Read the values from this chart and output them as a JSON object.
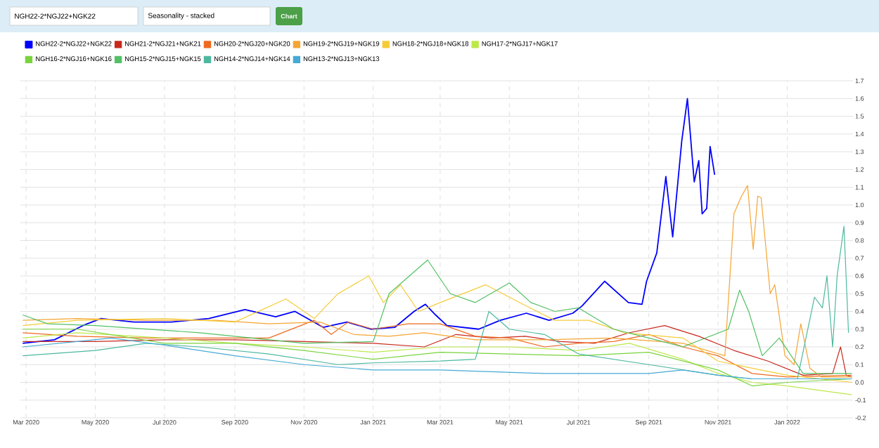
{
  "chart_data": {
    "type": "line",
    "title": "NGH22-2*NGJ22+NGK22",
    "subtitle": "Seasonality - stacked",
    "annotations": [
      "Chart"
    ],
    "xlim": [
      "2020-02-25",
      "2022-02-28"
    ],
    "xticks": [
      {
        "value": "2020-03-01",
        "label": "Mar 2020"
      },
      {
        "value": "2020-05-01",
        "label": "May 2020"
      },
      {
        "value": "2020-07-01",
        "label": "Jul 2020"
      },
      {
        "value": "2020-09-01",
        "label": "Sep 2020"
      },
      {
        "value": "2020-11-01",
        "label": "Nov 2020"
      },
      {
        "value": "2021-01-01",
        "label": "Jan 2021"
      },
      {
        "value": "2021-03-01",
        "label": "Mar 2021"
      },
      {
        "value": "2021-05-01",
        "label": "May 2021"
      },
      {
        "value": "2021-07-01",
        "label": "Jul 2021"
      },
      {
        "value": "2021-09-01",
        "label": "Sep 2021"
      },
      {
        "value": "2021-11-01",
        "label": "Nov 2021"
      },
      {
        "value": "2022-01-01",
        "label": "Jan 2022"
      }
    ],
    "ylim": [
      -0.2,
      1.7
    ],
    "yticks": [
      -0.2,
      -0.1,
      {
        "value": 0,
        "label": "0.0"
      },
      0.1,
      0.2,
      0.3,
      0.4,
      0.5,
      0.6,
      0.7,
      0.8,
      0.9,
      {
        "value": 1,
        "label": "1.0"
      },
      1.1,
      1.2,
      1.3,
      1.4,
      1.5,
      1.6,
      1.7
    ],
    "grid": true,
    "legend": "top",
    "marker": "none",
    "line_style": "solid",
    "series": [
      {
        "name": "NGH22-2*NGJ22+NGK22",
        "color": "#0000ff",
        "x": [
          "2020-02-27",
          "2020-03-26",
          "2020-04-20",
          "2020-05-06",
          "2020-06-04",
          "2020-07-07",
          "2020-08-09",
          "2020-09-10",
          "2020-10-07",
          "2020-10-24",
          "2020-11-18",
          "2020-12-09",
          "2020-12-30",
          "2021-01-20",
          "2021-02-06",
          "2021-02-16",
          "2021-02-25",
          "2021-03-07",
          "2021-04-04",
          "2021-04-23",
          "2021-05-16",
          "2021-06-05",
          "2021-06-26",
          "2021-07-04",
          "2021-07-24",
          "2021-08-14",
          "2021-08-26",
          "2021-08-30",
          "2021-09-08",
          "2021-09-16",
          "2021-09-22",
          "2021-09-30",
          "2021-10-05",
          "2021-10-11",
          "2021-10-15",
          "2021-10-18",
          "2021-10-22",
          "2021-10-25",
          "2021-10-29"
        ],
        "values": [
          0.22,
          0.24,
          0.32,
          0.36,
          0.34,
          0.34,
          0.36,
          0.41,
          0.37,
          0.4,
          0.31,
          0.34,
          0.3,
          0.31,
          0.4,
          0.44,
          0.38,
          0.32,
          0.3,
          0.35,
          0.39,
          0.35,
          0.39,
          0.43,
          0.57,
          0.45,
          0.44,
          0.57,
          0.73,
          1.16,
          0.82,
          1.36,
          1.6,
          1.13,
          1.25,
          0.95,
          0.98,
          1.33,
          1.17
        ]
      },
      {
        "name": "NGH21-2*NGJ21+NGK21",
        "color": "#c8281c",
        "x": [
          "2020-02-27",
          "2020-05-01",
          "2020-07-01",
          "2020-09-01",
          "2020-11-01",
          "2021-01-01",
          "2021-02-15",
          "2021-03-15",
          "2021-04-15",
          "2021-05-15",
          "2021-06-15",
          "2021-07-15",
          "2021-08-15",
          "2021-09-15",
          "2021-10-15",
          "2021-11-15",
          "2021-12-15",
          "2022-01-15",
          "2022-02-10",
          "2022-02-17",
          "2022-02-22",
          "2022-02-27"
        ],
        "values": [
          0.23,
          0.23,
          0.24,
          0.24,
          0.23,
          0.22,
          0.2,
          0.27,
          0.25,
          0.26,
          0.23,
          0.22,
          0.28,
          0.32,
          0.26,
          0.18,
          0.12,
          0.04,
          0.05,
          0.2,
          0.04,
          0.03
        ]
      },
      {
        "name": "NGH20-2*NGJ20+NGK20",
        "color": "#ee6a1f",
        "x": [
          "2020-02-27",
          "2020-04-15",
          "2020-06-15",
          "2020-08-15",
          "2020-10-01",
          "2020-11-10",
          "2020-11-25",
          "2020-12-10",
          "2021-01-01",
          "2021-02-01",
          "2021-03-01",
          "2021-04-01",
          "2021-05-01",
          "2021-06-01",
          "2021-07-01",
          "2021-08-01",
          "2021-09-01",
          "2021-10-01",
          "2021-11-01",
          "2021-12-01",
          "2022-01-01",
          "2022-02-27"
        ],
        "values": [
          0.28,
          0.26,
          0.25,
          0.25,
          0.25,
          0.35,
          0.27,
          0.34,
          0.3,
          0.33,
          0.33,
          0.26,
          0.25,
          0.2,
          0.22,
          0.23,
          0.27,
          0.2,
          0.15,
          0.05,
          0.03,
          0.04
        ]
      },
      {
        "name": "NGH19-2*NGJ19+NGK19",
        "color": "#f5a533",
        "x": [
          "2020-02-27",
          "2020-04-15",
          "2020-06-15",
          "2020-08-15",
          "2020-10-01",
          "2020-11-15",
          "2020-12-15",
          "2021-01-15",
          "2021-02-15",
          "2021-04-01",
          "2021-06-01",
          "2021-08-01",
          "2021-10-01",
          "2021-11-07",
          "2021-11-15",
          "2021-11-21",
          "2021-11-27",
          "2021-12-02",
          "2021-12-06",
          "2021-12-09",
          "2021-12-17",
          "2021-12-21",
          "2021-12-30",
          "2022-01-07",
          "2022-01-13",
          "2022-01-21",
          "2022-01-31",
          "2022-02-27"
        ],
        "values": [
          0.35,
          0.36,
          0.35,
          0.35,
          0.33,
          0.34,
          0.27,
          0.26,
          0.28,
          0.24,
          0.24,
          0.25,
          0.22,
          0.15,
          0.95,
          1.04,
          1.11,
          0.75,
          1.05,
          1.04,
          0.5,
          0.55,
          0.15,
          0.1,
          0.33,
          0.08,
          0.03,
          0.03
        ]
      },
      {
        "name": "NGH18-2*NGJ18+NGK18",
        "color": "#f5cc38",
        "x": [
          "2020-02-27",
          "2020-04-15",
          "2020-07-01",
          "2020-09-01",
          "2020-10-16",
          "2020-11-10",
          "2020-12-01",
          "2020-12-28",
          "2021-01-10",
          "2021-01-25",
          "2021-02-10",
          "2021-03-01",
          "2021-04-10",
          "2021-05-10",
          "2021-06-10",
          "2021-07-10",
          "2021-08-10",
          "2021-10-01",
          "2021-11-01",
          "2021-12-01",
          "2022-01-01",
          "2022-02-27"
        ],
        "values": [
          0.32,
          0.35,
          0.36,
          0.34,
          0.47,
          0.36,
          0.5,
          0.6,
          0.45,
          0.55,
          0.4,
          0.45,
          0.55,
          0.45,
          0.35,
          0.35,
          0.28,
          0.25,
          0.12,
          0.08,
          0.04,
          0.0
        ]
      },
      {
        "name": "NGH17-2*NGJ17+NGK17",
        "color": "#bde84a",
        "x": [
          "2020-02-27",
          "2020-04-15",
          "2020-07-01",
          "2020-09-01",
          "2020-11-01",
          "2021-01-01",
          "2021-03-01",
          "2021-05-01",
          "2021-07-01",
          "2021-08-15",
          "2021-10-01",
          "2021-11-01",
          "2021-12-01",
          "2022-01-01",
          "2022-02-27"
        ],
        "values": [
          0.25,
          0.28,
          0.25,
          0.22,
          0.2,
          0.17,
          0.2,
          0.2,
          0.18,
          0.22,
          0.13,
          0.05,
          0.0,
          -0.02,
          -0.07
        ]
      },
      {
        "name": "NGH16-2*NGJ16+NGK16",
        "color": "#79d33e",
        "x": [
          "2020-02-27",
          "2020-04-15",
          "2020-07-01",
          "2020-09-01",
          "2020-11-01",
          "2021-01-01",
          "2021-03-01",
          "2021-05-01",
          "2021-07-01",
          "2021-09-01",
          "2021-11-01",
          "2021-12-01",
          "2022-01-01",
          "2022-02-27"
        ],
        "values": [
          0.3,
          0.3,
          0.22,
          0.22,
          0.18,
          0.13,
          0.17,
          0.16,
          0.15,
          0.17,
          0.07,
          -0.02,
          0.0,
          0.02
        ]
      },
      {
        "name": "NGH15-2*NGJ15+NGK15",
        "color": "#52c064",
        "x": [
          "2020-02-27",
          "2020-03-20",
          "2020-05-01",
          "2020-08-01",
          "2020-11-01",
          "2021-01-01",
          "2021-01-15",
          "2021-02-18",
          "2021-03-10",
          "2021-04-01",
          "2021-05-01",
          "2021-05-20",
          "2021-06-10",
          "2021-07-01",
          "2021-08-01",
          "2021-09-01",
          "2021-10-01",
          "2021-11-10",
          "2021-11-20",
          "2021-11-28",
          "2021-12-10",
          "2021-12-25",
          "2022-01-15",
          "2022-02-27"
        ],
        "values": [
          0.38,
          0.33,
          0.32,
          0.28,
          0.22,
          0.23,
          0.5,
          0.69,
          0.5,
          0.45,
          0.56,
          0.45,
          0.4,
          0.42,
          0.3,
          0.25,
          0.2,
          0.3,
          0.52,
          0.4,
          0.15,
          0.25,
          0.05,
          0.05
        ]
      },
      {
        "name": "NGH14-2*NGJ14+NGK14",
        "color": "#4db8a0",
        "x": [
          "2020-02-27",
          "2020-05-01",
          "2020-06-15",
          "2020-08-01",
          "2020-10-01",
          "2020-12-01",
          "2021-01-01",
          "2021-03-01",
          "2021-04-01",
          "2021-04-13",
          "2021-05-01",
          "2021-06-01",
          "2021-07-01",
          "2021-09-01",
          "2021-11-01",
          "2021-12-01",
          "2022-01-10",
          "2022-01-25",
          "2022-02-01",
          "2022-02-05",
          "2022-02-10",
          "2022-02-14",
          "2022-02-20",
          "2022-02-24"
        ],
        "values": [
          0.15,
          0.18,
          0.22,
          0.2,
          0.16,
          0.1,
          0.11,
          0.12,
          0.13,
          0.4,
          0.3,
          0.27,
          0.16,
          0.1,
          0.04,
          0.02,
          0.02,
          0.48,
          0.42,
          0.6,
          0.2,
          0.6,
          0.88,
          0.28
        ]
      },
      {
        "name": "NGH13-2*NGJ13+NGK13",
        "color": "#46a9d6",
        "x": [
          "2020-02-27",
          "2020-04-15",
          "2020-05-15",
          "2020-07-01",
          "2020-09-01",
          "2020-11-01",
          "2021-01-01",
          "2021-03-01",
          "2021-06-01",
          "2021-09-01",
          "2021-10-01",
          "2021-11-01",
          "2021-12-01",
          "2022-02-27"
        ],
        "values": [
          0.2,
          0.23,
          0.25,
          0.21,
          0.15,
          0.1,
          0.07,
          0.07,
          0.05,
          0.05,
          0.07,
          0.04,
          0.02,
          0.02
        ]
      }
    ]
  }
}
